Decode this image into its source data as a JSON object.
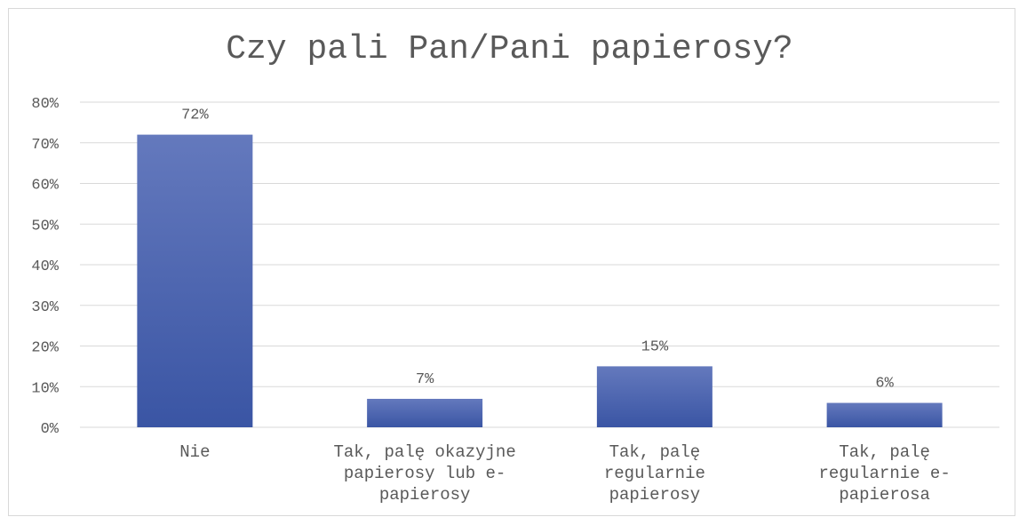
{
  "chart_data": {
    "type": "bar",
    "title": "Czy pali Pan/Pani papierosy?",
    "categories": [
      [
        "Nie"
      ],
      [
        "Tak, palę okazyjne",
        "papierosy lub e-",
        "papierosy"
      ],
      [
        "Tak, palę",
        "regularnie",
        "papierosy"
      ],
      [
        "Tak, palę",
        "regularnie e-",
        "papierosa"
      ]
    ],
    "values": [
      72,
      7,
      15,
      6
    ],
    "value_labels": [
      "72%",
      "7%",
      "15%",
      "6%"
    ],
    "yticks": [
      "0%",
      "10%",
      "20%",
      "30%",
      "40%",
      "50%",
      "60%",
      "70%",
      "80%"
    ],
    "ylim": [
      0,
      80
    ],
    "grid": true,
    "legend": "none",
    "bar_color_top": "#6479bd",
    "bar_color_bottom": "#3a55a4",
    "gridline_color": "#d9d9d9"
  }
}
